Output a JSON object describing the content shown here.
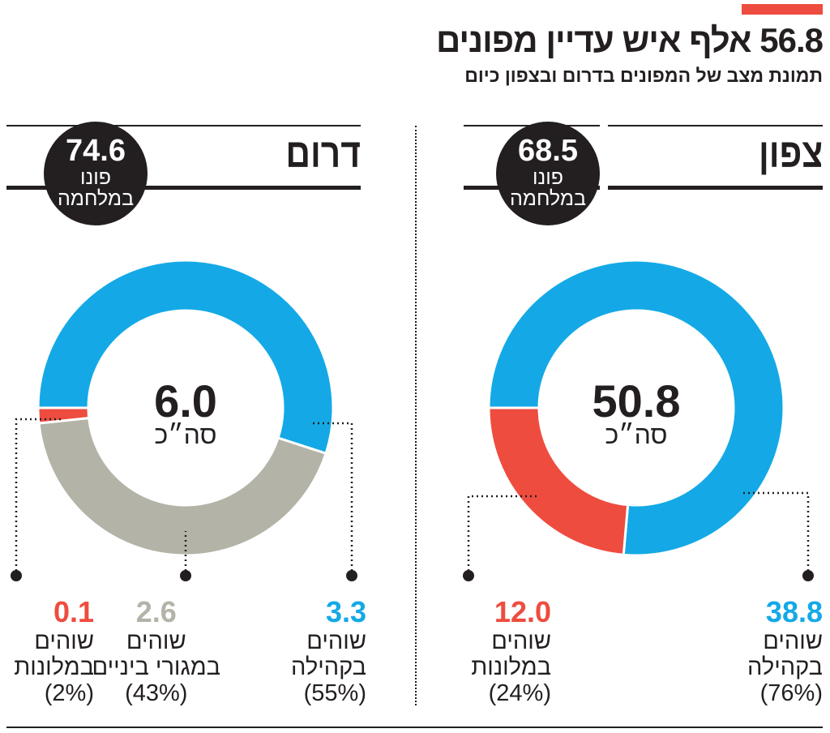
{
  "header": {
    "title": "56.8 אלף איש עדיין מפונים",
    "subtitle": "תמונת מצב של המפונים בדרום ובצפון כיום"
  },
  "colors": {
    "community": "#14a9e6",
    "hotels": "#ee4c3f",
    "interim": "#b3b3a8",
    "dark": "#231f20"
  },
  "panels": [
    {
      "region": "צפון",
      "evacuated_value": "68.5",
      "evacuated_line1": "פונו",
      "evacuated_line2": "במלחמה",
      "total": "50.8",
      "total_label": "סה״כ",
      "segments": [
        {
          "value": "38.8",
          "line1": "שוהים",
          "line2": "בקהילה",
          "pct": "(76%)"
        },
        {
          "value": "12.0",
          "line1": "שוהים",
          "line2": "במלונות",
          "pct": "(24%)"
        }
      ]
    },
    {
      "region": "דרום",
      "evacuated_value": "74.6",
      "evacuated_line1": "פונו",
      "evacuated_line2": "במלחמה",
      "total": "6.0",
      "total_label": "סה״כ",
      "segments": [
        {
          "value": "3.3",
          "line1": "שוהים",
          "line2": "בקהילה",
          "pct": "(55%)"
        },
        {
          "value": "2.6",
          "line1": "שוהים",
          "line2": "במגורי ביניים",
          "pct": "(43%)"
        },
        {
          "value": "0.1",
          "line1": "שוהים",
          "line2": "במלונות",
          "pct": "(2%)"
        }
      ]
    }
  ],
  "chart_data": [
    {
      "type": "pie",
      "title": "צפון",
      "total": 50.8,
      "categories": [
        "שוהים בקהילה",
        "שוהים במלונות"
      ],
      "values": [
        38.8,
        12.0
      ],
      "percent": [
        76,
        24
      ],
      "colors": [
        "#14a9e6",
        "#ee4c3f"
      ]
    },
    {
      "type": "pie",
      "title": "דרום",
      "total": 6.0,
      "categories": [
        "שוהים בקהילה",
        "שוהים במגורי ביניים",
        "שוהים במלונות"
      ],
      "values": [
        3.3,
        2.6,
        0.1
      ],
      "percent": [
        55,
        43,
        2
      ],
      "colors": [
        "#14a9e6",
        "#b3b3a8",
        "#ee4c3f"
      ]
    }
  ]
}
